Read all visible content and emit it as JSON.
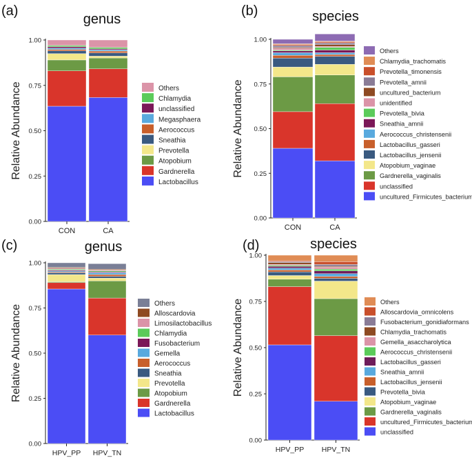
{
  "colors": {
    "blue": "#4B4DF5",
    "red": "#D9352B",
    "green": "#6C9A45",
    "yellow": "#F3E78A",
    "purple": "#5C2A84",
    "teal": "#3A5A80",
    "orange": "#C85F2B",
    "skyblue": "#59A9DE",
    "maroon": "#7B1858",
    "lightgreen": "#5BCB5A",
    "pink": "#DB94A8",
    "brown": "#8E4A22",
    "grey": "#8A7C96",
    "lavender": "#8D6BB3",
    "tan": "#E08C55",
    "rust": "#C94F2B",
    "slate": "#7A7F96",
    "dpurple": "#6E1C5A"
  },
  "chart_data": [
    {
      "type": "bar",
      "panel_label": "(a)",
      "title": "genus",
      "ylabel": "Relative  Abundance",
      "ylim": [
        0,
        1
      ],
      "yticks": [
        "0.00",
        "0.25",
        "0.50",
        "0.75",
        "1.00"
      ],
      "categories": [
        "CON",
        "CA"
      ],
      "legend": [
        "Others",
        "Chlamydia",
        "unclassified",
        "Megasphaera",
        "Aerococcus",
        "Sneathia",
        "Prevotella",
        "Atopobium",
        "Gardnerella",
        "Lactobacillus"
      ],
      "series": [
        {
          "name": "Lactobacillus",
          "color": "blue",
          "values": [
            0.635,
            0.683
          ]
        },
        {
          "name": "Gardnerella",
          "color": "red",
          "values": [
            0.195,
            0.158
          ]
        },
        {
          "name": "Atopobium",
          "color": "green",
          "values": [
            0.06,
            0.06
          ]
        },
        {
          "name": "Prevotella",
          "color": "yellow",
          "values": [
            0.035,
            0.01
          ]
        },
        {
          "name": "Sneathia",
          "color": "teal",
          "values": [
            0.015,
            0.018
          ]
        },
        {
          "name": "Aerococcus",
          "color": "orange",
          "values": [
            0.008,
            0.01
          ]
        },
        {
          "name": "Megasphaera",
          "color": "skyblue",
          "values": [
            0.007,
            0.007
          ]
        },
        {
          "name": "unclassified",
          "color": "maroon",
          "values": [
            0.008,
            0.005
          ]
        },
        {
          "name": "Chlamydia",
          "color": "lightgreen",
          "values": [
            0.007,
            0.008
          ]
        },
        {
          "name": "Others",
          "color": "pink",
          "values": [
            0.03,
            0.041
          ]
        }
      ]
    },
    {
      "type": "bar",
      "panel_label": "(b)",
      "title": "species",
      "ylabel": "Relative  Abundance",
      "ylim": [
        0,
        1
      ],
      "yticks": [
        "0.00",
        "0.25",
        "0.50",
        "0.75",
        "1.00"
      ],
      "categories": [
        "CON",
        "CA"
      ],
      "legend": [
        "Others",
        "Chlamydia_trachomatis",
        "Prevotella_timonensis",
        "Prevotella_amnii",
        "uncultured_bacterium",
        "unidentified",
        "Prevotella_bivia",
        "Sneathia_amnii",
        "Aerococcus_christensenii",
        "Lactobacillus_gasseri",
        "Lactobacillus_jensenii",
        "Atopobium_vaginae",
        "Gardnerella_vaginalis",
        "unclassified",
        "uncultured_Firmicutes_bacterium"
      ],
      "series": [
        {
          "name": "uncultured_Firmicutes_bacterium",
          "color": "blue",
          "values": [
            0.39,
            0.32
          ]
        },
        {
          "name": "unclassified",
          "color": "red",
          "values": [
            0.205,
            0.32
          ]
        },
        {
          "name": "Gardnerella_vaginalis",
          "color": "green",
          "values": [
            0.195,
            0.16
          ]
        },
        {
          "name": "Atopobium_vaginae",
          "color": "yellow",
          "values": [
            0.055,
            0.06
          ]
        },
        {
          "name": "Lactobacillus_jensenii",
          "color": "teal",
          "values": [
            0.05,
            0.045
          ]
        },
        {
          "name": "Lactobacillus_gasseri",
          "color": "orange",
          "values": [
            0.015,
            0.01
          ]
        },
        {
          "name": "Aerococcus_christensenii",
          "color": "skyblue",
          "values": [
            0.015,
            0.01
          ]
        },
        {
          "name": "Sneathia_amnii",
          "color": "maroon",
          "values": [
            0.01,
            0.015
          ]
        },
        {
          "name": "Prevotella_bivia",
          "color": "lightgreen",
          "values": [
            0.005,
            0.015
          ]
        },
        {
          "name": "unidentified",
          "color": "pink",
          "values": [
            0.01,
            0.005
          ]
        },
        {
          "name": "uncultured_bacterium",
          "color": "brown",
          "values": [
            0.005,
            0.01
          ]
        },
        {
          "name": "Prevotella_amnii",
          "color": "grey",
          "values": [
            0.01,
            0.01
          ]
        },
        {
          "name": "Prevotella_timonensis",
          "color": "rust",
          "values": [
            0.005,
            0.005
          ]
        },
        {
          "name": "Chlamydia_trachomatis",
          "color": "tan",
          "values": [
            0.005,
            0.005
          ]
        },
        {
          "name": "Others",
          "color": "lavender",
          "values": [
            0.025,
            0.04
          ]
        }
      ]
    },
    {
      "type": "bar",
      "panel_label": "(c)",
      "title": "genus",
      "ylabel": "Relative  Abundance",
      "ylim": [
        0,
        1
      ],
      "yticks": [
        "0.00",
        "0.25",
        "0.50",
        "0.75",
        "1.00"
      ],
      "categories": [
        "HPV_PP",
        "HPV_TN"
      ],
      "legend": [
        "Others",
        "Alloscardovia",
        "Limosilactobacillus",
        "Chlamydia",
        "Fusobacterium",
        "Gemella",
        "Aerococcus",
        "Sneathia",
        "Prevotella",
        "Atopobium",
        "Gardnerella",
        "Lactobacillus"
      ],
      "series": [
        {
          "name": "Lactobacillus",
          "color": "blue",
          "values": [
            0.855,
            0.6
          ]
        },
        {
          "name": "Gardnerella",
          "color": "red",
          "values": [
            0.035,
            0.205
          ]
        },
        {
          "name": "Atopobium",
          "color": "green",
          "values": [
            0.005,
            0.095
          ]
        },
        {
          "name": "Prevotella",
          "color": "yellow",
          "values": [
            0.04,
            0.015
          ]
        },
        {
          "name": "Sneathia",
          "color": "teal",
          "values": [
            0.01,
            0.01
          ]
        },
        {
          "name": "Aerococcus",
          "color": "orange",
          "values": [
            0.005,
            0.01
          ]
        },
        {
          "name": "Gemella",
          "color": "skyblue",
          "values": [
            0.005,
            0.01
          ]
        },
        {
          "name": "Fusobacterium",
          "color": "maroon",
          "values": [
            0.005,
            0.005
          ]
        },
        {
          "name": "Chlamydia",
          "color": "lightgreen",
          "values": [
            0.005,
            0.005
          ]
        },
        {
          "name": "Limosilactobacillus",
          "color": "pink",
          "values": [
            0.005,
            0.005
          ]
        },
        {
          "name": "Alloscardovia",
          "color": "brown",
          "values": [
            0.005,
            0.005
          ]
        },
        {
          "name": "Others",
          "color": "slate",
          "values": [
            0.025,
            0.03
          ]
        }
      ]
    },
    {
      "type": "bar",
      "panel_label": "(d)",
      "title": "species",
      "ylabel": "Relative  Abundance",
      "ylim": [
        0,
        1
      ],
      "yticks": [
        "0.00",
        "0.25",
        "0.50",
        "0.75",
        "1.00"
      ],
      "categories": [
        "HPV_PP",
        "HPV_TN"
      ],
      "legend": [
        "Others",
        "Alloscardovia_omnicolens",
        "Fusobacterium_gonidiaformans",
        "Chlamydia_trachomatis",
        "Gemella_asaccharolytica",
        "Aerococcus_christensenii",
        "Lactobacillus_gasseri",
        "Sneathia_amnii",
        "Lactobacillus_jensenii",
        "Prevotella_bivia",
        "Atopobium_vaginae",
        "Gardnerella_vaginalis",
        "uncultured_Firmicutes_bacterium",
        "unclassified"
      ],
      "series": [
        {
          "name": "unclassified",
          "color": "blue",
          "values": [
            0.515,
            0.21
          ]
        },
        {
          "name": "uncultured_Firmicutes_bacterium",
          "color": "red",
          "values": [
            0.315,
            0.355
          ]
        },
        {
          "name": "Gardnerella_vaginalis",
          "color": "green",
          "values": [
            0.04,
            0.2
          ]
        },
        {
          "name": "Atopobium_vaginae",
          "color": "yellow",
          "values": [
            0.02,
            0.095
          ]
        },
        {
          "name": "Prevotella_bivia",
          "color": "teal",
          "values": [
            0.02,
            0.015
          ]
        },
        {
          "name": "Lactobacillus_jensenii",
          "color": "orange",
          "values": [
            0.01,
            0.01
          ]
        },
        {
          "name": "Sneathia_amnii",
          "color": "skyblue",
          "values": [
            0.01,
            0.015
          ]
        },
        {
          "name": "Lactobacillus_gasseri",
          "color": "dpurple",
          "values": [
            0.01,
            0.015
          ]
        },
        {
          "name": "Aerococcus_christensenii",
          "color": "lightgreen",
          "values": [
            0.005,
            0.01
          ]
        },
        {
          "name": "Gemella_asaccharolytica",
          "color": "pink",
          "values": [
            0.005,
            0.01
          ]
        },
        {
          "name": "Chlamydia_trachomatis",
          "color": "brown",
          "values": [
            0.01,
            0.005
          ]
        },
        {
          "name": "Fusobacterium_gonidiaformans",
          "color": "grey",
          "values": [
            0.005,
            0.01
          ]
        },
        {
          "name": "Alloscardovia_omnicolens",
          "color": "rust",
          "values": [
            0.005,
            0.015
          ]
        },
        {
          "name": "Others",
          "color": "tan",
          "values": [
            0.03,
            0.035
          ]
        }
      ]
    }
  ]
}
